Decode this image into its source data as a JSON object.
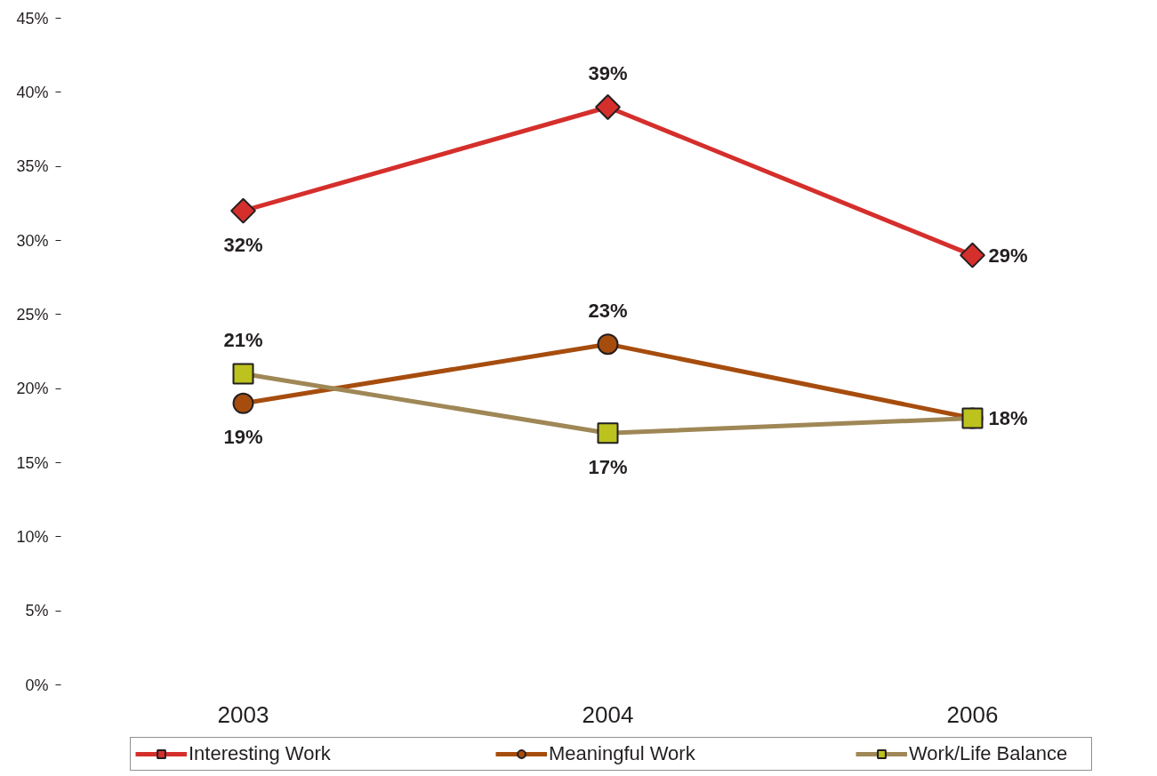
{
  "chart_data": {
    "type": "line",
    "categories": [
      "2003",
      "2004",
      "2006"
    ],
    "series": [
      {
        "name": "Interesting Work",
        "color": "#d52f2c",
        "marker": "diamond",
        "values": [
          32,
          39,
          29
        ],
        "value_labels": [
          "32%",
          "39%",
          "29%"
        ]
      },
      {
        "name": "Meaningful Work",
        "color": "#a64d0e",
        "marker": "circle",
        "values": [
          19,
          23,
          18
        ],
        "value_labels": [
          "19%",
          "23%",
          "18%"
        ]
      },
      {
        "name": "Work/Life Balance",
        "color": "#9f8756",
        "colors": [
          "#bcc21e",
          "#bcc21e",
          "#bcc21e"
        ],
        "marker": "square",
        "values": [
          21,
          17,
          18
        ],
        "value_labels": [
          "21%",
          "17%",
          null
        ]
      }
    ],
    "ylim": [
      0,
      45
    ],
    "yticks": [
      {
        "value": 0,
        "label": "0%"
      },
      {
        "value": 5,
        "label": "5%"
      },
      {
        "value": 10,
        "label": "10%"
      },
      {
        "value": 15,
        "label": "15%"
      },
      {
        "value": 20,
        "label": "20%"
      },
      {
        "value": 25,
        "label": "25%"
      },
      {
        "value": 30,
        "label": "30%"
      },
      {
        "value": 35,
        "label": "35%"
      },
      {
        "value": 40,
        "label": "40%"
      },
      {
        "value": 45,
        "label": "45%"
      }
    ],
    "grid": false,
    "legend": "bottom"
  }
}
